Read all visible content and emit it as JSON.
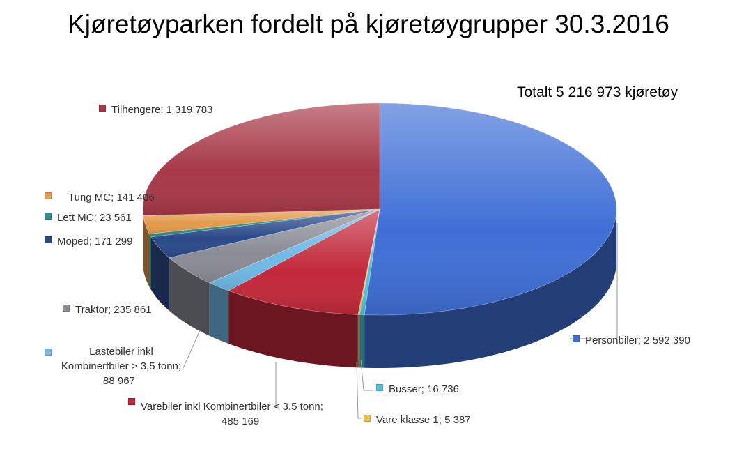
{
  "chart_data": {
    "type": "pie",
    "title": "Kjøretøyparken fordelt på kjøretøygrupper 30.3.2016",
    "annotation": "Totalt 5 216 973 kjøretøy",
    "slices": [
      {
        "label": "Personbiler",
        "value": 2592390,
        "value_text": "2 592 390",
        "color": "#3f6fd6"
      },
      {
        "label": "Busser",
        "value": 16736,
        "value_text": "16 736",
        "color": "#4fc1d9"
      },
      {
        "label": "Vare klasse 1",
        "value": 5387,
        "value_text": "5 387",
        "color": "#e6c24a"
      },
      {
        "label": "Varebiler inkl Kombinertbiler < 3.5 tonn",
        "value": 485169,
        "value_text": "485 169",
        "color": "#c3283a"
      },
      {
        "label": "Lastebiler inkl Kombinertbiler > 3,5 tonn",
        "value": 88967,
        "value_text": "88 967",
        "color": "#6fb9e6"
      },
      {
        "label": "Traktor",
        "value": 235861,
        "value_text": "235 861",
        "color": "#8a8c96"
      },
      {
        "label": "Moped",
        "value": 171299,
        "value_text": "171 299",
        "color": "#2b4a8a"
      },
      {
        "label": "Lett MC",
        "value": 23561,
        "value_text": "23 561",
        "color": "#2f8f8a"
      },
      {
        "label": "Tung MC",
        "value": 141406,
        "value_text": "141 406",
        "color": "#e39a4a"
      },
      {
        "label": "Tilhengere",
        "value": 1319783,
        "value_text": "1 319 783",
        "color": "#a83848"
      }
    ],
    "legend": "labels beside slices with leader lines"
  },
  "labels": {
    "personbiler": "Personbiler;  2 592 390",
    "busser": "Busser;  16 736",
    "vare_klasse": "Vare klasse 1;  5 387",
    "varebiler_line1": "Varebiler inkl Kombinertbiler < 3.5 tonn;",
    "varebiler_line2": "485 169",
    "lastebiler_line1": "Lastebiler inkl",
    "lastebiler_line2": "Kombinertbiler > 3,5 tonn;",
    "lastebiler_line3": "88 967",
    "traktor": "Traktor;  235 861",
    "moped": "Moped;  171 299",
    "lett_mc": "Lett MC;  23 561",
    "tung_mc": "Tung MC;  141 406",
    "tilhengere": "Tilhengere;  1 319 783"
  }
}
